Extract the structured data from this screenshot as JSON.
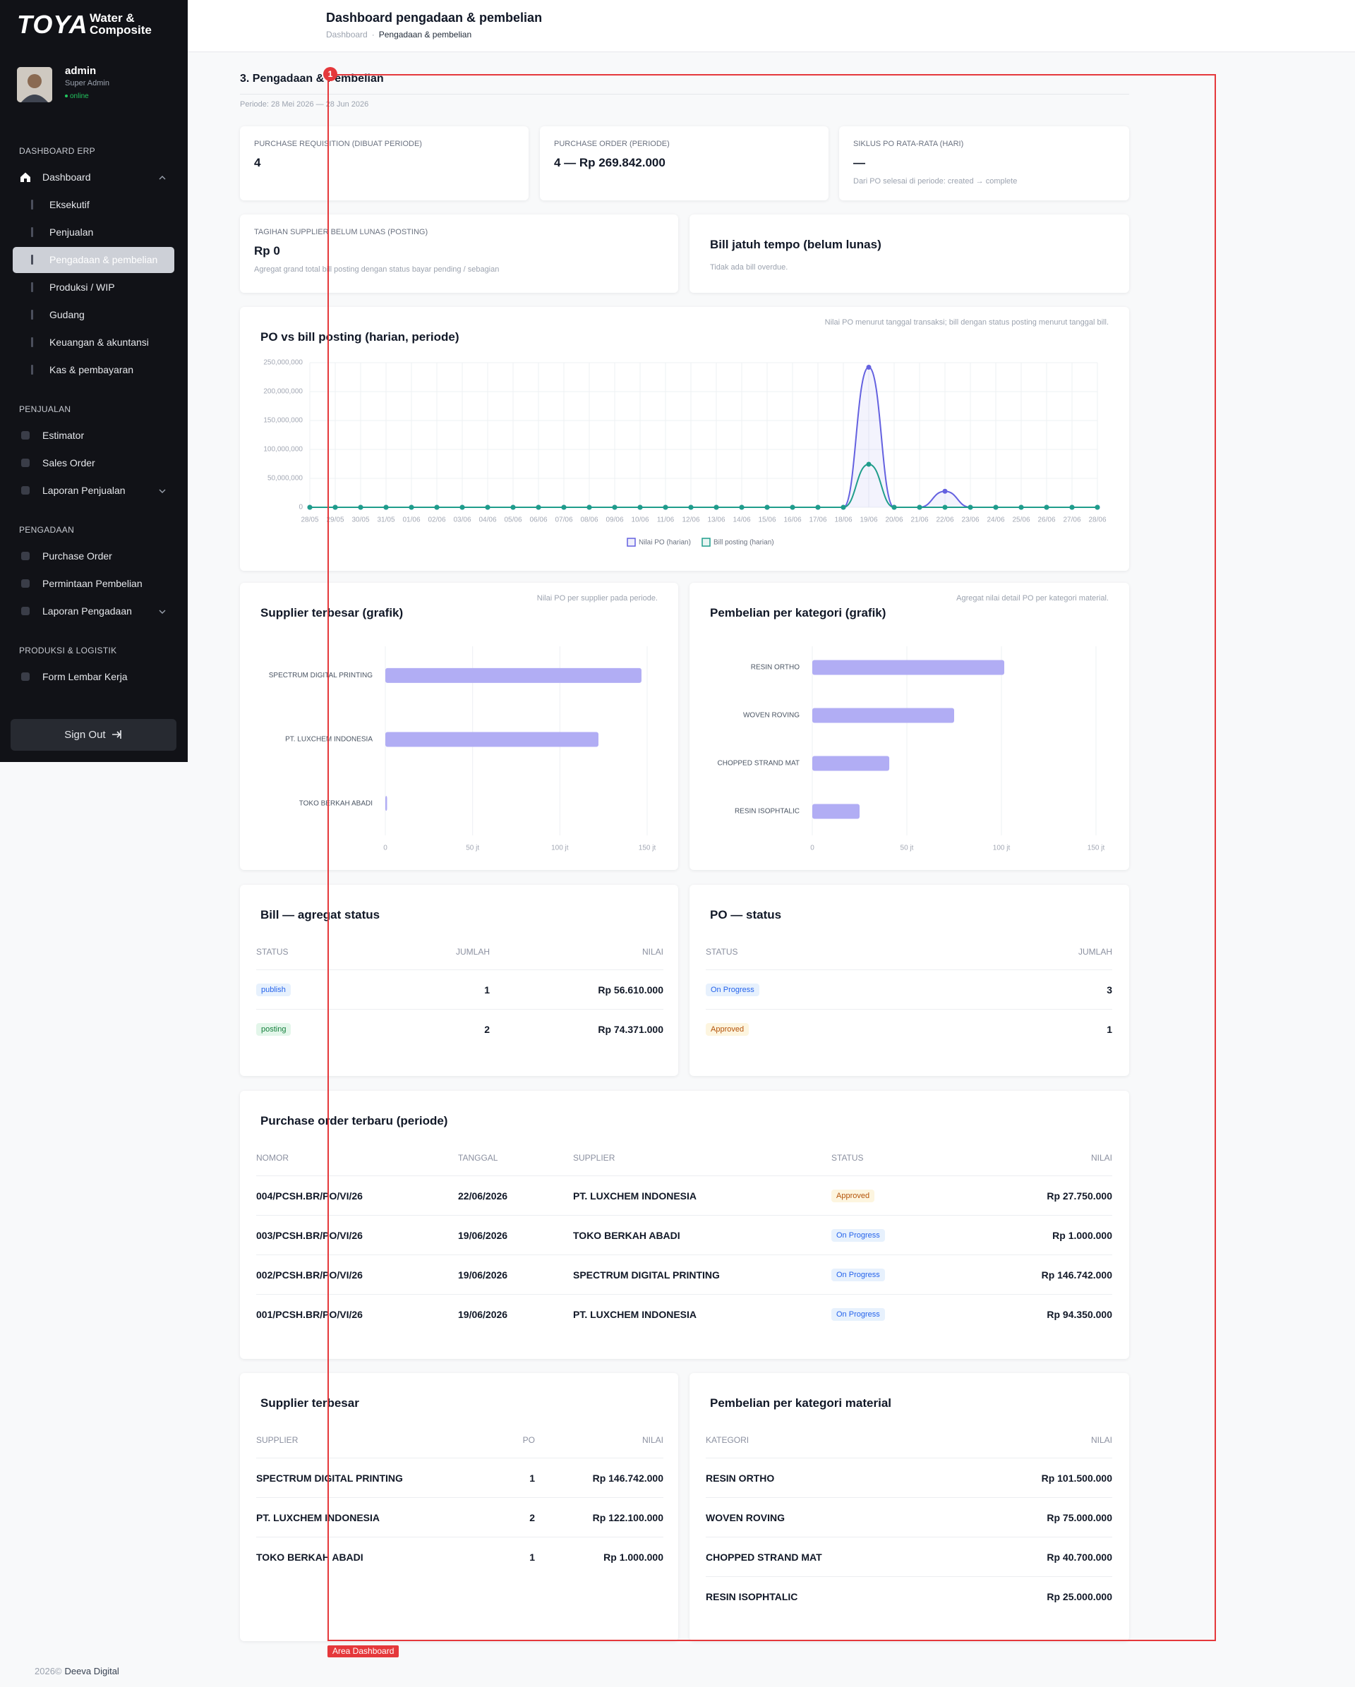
{
  "sidebar": {
    "logo": "TOYA",
    "brand": [
      "Water &",
      "Composite"
    ],
    "user": {
      "name": "admin",
      "role": "Super Admin",
      "status": "online"
    },
    "menu": [
      {
        "title": "DASHBOARD ERP",
        "items": [
          {
            "label": "Dashboard",
            "expandable": true,
            "expanded": true,
            "children": [
              {
                "label": "Eksekutif"
              },
              {
                "label": "Penjualan"
              },
              {
                "label": "Pengadaan & pembelian",
                "active": true
              },
              {
                "label": "Produksi / WIP"
              },
              {
                "label": "Gudang"
              },
              {
                "label": "Keuangan & akuntansi"
              },
              {
                "label": "Kas & pembayaran"
              }
            ]
          }
        ]
      },
      {
        "title": "PENJUALAN",
        "items": [
          {
            "label": "Estimator"
          },
          {
            "label": "Sales Order"
          },
          {
            "label": "Laporan Penjualan",
            "expandable": true
          }
        ]
      },
      {
        "title": "PENGADAAN",
        "items": [
          {
            "label": "Purchase Order"
          },
          {
            "label": "Permintaan Pembelian"
          },
          {
            "label": "Laporan Pengadaan",
            "expandable": true
          }
        ]
      },
      {
        "title": "PRODUKSI & LOGISTIK",
        "items": [
          {
            "label": "Form Lembar Kerja"
          }
        ]
      }
    ],
    "sign_out": "Sign Out"
  },
  "header": {
    "title": "Dashboard pengadaan & pembelian",
    "breadcrumb": [
      "Dashboard",
      "Pengadaan & pembelian"
    ]
  },
  "section": {
    "title": "3. Pengadaan & Pembelian",
    "period": "Periode: 28 Mei 2026 — 28 Jun 2026"
  },
  "kpis": [
    {
      "label": "PURCHASE REQUISITION (DIBUAT PERIODE)",
      "value": "4"
    },
    {
      "label": "PURCHASE ORDER (PERIODE)",
      "value": "4 — Rp 269.842.000"
    },
    {
      "label": "SIKLUS PO RATA-RATA (HARI)",
      "value": "—",
      "note": "Dari PO selesai di periode: created → complete"
    },
    {
      "label": "TAGIHAN SUPPLIER BELUM LUNAS (POSTING)",
      "value": "Rp 0",
      "note": "Agregat grand total bill posting dengan status bayar pending / sebagian"
    }
  ],
  "overdue": {
    "title": "Bill jatuh tempo (belum lunas)",
    "note": "Tidak ada bill overdue."
  },
  "chart_data": [
    {
      "type": "line",
      "title": "PO vs bill posting (harian, periode)",
      "subtitle": "Nilai PO menurut tanggal transaksi; bill dengan status posting menurut tanggal bill.",
      "categories": [
        "28/05",
        "29/05",
        "30/05",
        "31/05",
        "01/06",
        "02/06",
        "03/06",
        "04/06",
        "05/06",
        "06/06",
        "07/06",
        "08/06",
        "09/06",
        "10/06",
        "11/06",
        "12/06",
        "13/06",
        "14/06",
        "15/06",
        "16/06",
        "17/06",
        "18/06",
        "19/06",
        "20/06",
        "21/06",
        "22/06",
        "23/06",
        "24/06",
        "25/06",
        "26/06",
        "27/06",
        "28/06"
      ],
      "series": [
        {
          "name": "Nilai PO (harian)",
          "color": "#6461e0",
          "area": true,
          "values": [
            0,
            0,
            0,
            0,
            0,
            0,
            0,
            0,
            0,
            0,
            0,
            0,
            0,
            0,
            0,
            0,
            0,
            0,
            0,
            0,
            0,
            0,
            242092000,
            0,
            0,
            27750000,
            0,
            0,
            0,
            0,
            0,
            0
          ]
        },
        {
          "name": "Bill posting (harian)",
          "color": "#1f9d8b",
          "values": [
            0,
            0,
            0,
            0,
            0,
            0,
            0,
            0,
            0,
            0,
            0,
            0,
            0,
            0,
            0,
            0,
            0,
            0,
            0,
            0,
            0,
            0,
            74371000,
            0,
            0,
            0,
            0,
            0,
            0,
            0,
            0,
            0
          ]
        }
      ],
      "ylim": [
        0,
        250000000
      ],
      "yticks": [
        0,
        {
          "value": 50000000,
          "label": "50,000,000"
        },
        {
          "value": 100000000,
          "label": "100,000,000"
        },
        {
          "value": 150000000,
          "label": "150,000,000"
        },
        {
          "value": 200000000,
          "label": "200,000,000"
        },
        {
          "value": 250000000,
          "label": "250,000,000"
        }
      ],
      "grid": true,
      "legend": "bottom"
    },
    {
      "type": "bar",
      "orientation": "horizontal",
      "title": "Supplier terbesar (grafik)",
      "subtitle": "Nilai PO per supplier pada periode.",
      "categories": [
        "SPECTRUM DIGITAL PRINTING",
        "PT. LUXCHEM INDONESIA",
        "TOKO BERKAH ABADI"
      ],
      "values": [
        146742000,
        122100000,
        1000000
      ],
      "color": "#b1adf4",
      "xlim": [
        0,
        150000000
      ],
      "xticks": [
        0,
        {
          "value": 50000000,
          "label": "50 jt"
        },
        {
          "value": 100000000,
          "label": "100 jt"
        },
        {
          "value": 150000000,
          "label": "150 jt"
        }
      ],
      "grid": true
    },
    {
      "type": "bar",
      "orientation": "horizontal",
      "title": "Pembelian per kategori (grafik)",
      "subtitle": "Agregat nilai detail PO per kategori material.",
      "categories": [
        "RESIN ORTHO",
        "WOVEN ROVING",
        "CHOPPED STRAND MAT",
        "RESIN ISOPHTALIC"
      ],
      "values": [
        101500000,
        75000000,
        40700000,
        25000000
      ],
      "color": "#b1adf4",
      "xlim": [
        0,
        150000000
      ],
      "xticks": [
        0,
        {
          "value": 50000000,
          "label": "50 jt"
        },
        {
          "value": 100000000,
          "label": "100 jt"
        },
        {
          "value": 150000000,
          "label": "150 jt"
        }
      ],
      "grid": true
    }
  ],
  "bill_status": {
    "title": "Bill — agregat status",
    "columns": [
      "STATUS",
      "JUMLAH",
      "NILAI"
    ],
    "align": [
      "left",
      "right",
      "right"
    ],
    "rows": [
      [
        "publish",
        1,
        "Rp 56.610.000"
      ],
      [
        "posting",
        2,
        "Rp 74.371.000"
      ]
    ],
    "badge_column": 0,
    "badge_tones": [
      "blue",
      "green"
    ]
  },
  "po_status": {
    "title": "PO — status",
    "columns": [
      "STATUS",
      "JUMLAH"
    ],
    "align": [
      "left",
      "right"
    ],
    "rows": [
      [
        "On Progress",
        3
      ],
      [
        "Approved",
        1
      ]
    ],
    "badge_column": 0,
    "badge_tones": [
      "blue",
      "amber"
    ]
  },
  "recent_po": {
    "title": "Purchase order terbaru (periode)",
    "columns": [
      "NOMOR",
      "TANGGAL",
      "SUPPLIER",
      "STATUS",
      "NILAI"
    ],
    "align": [
      "left",
      "left",
      "left",
      "left",
      "right"
    ],
    "rows": [
      [
        "004/PCSH.BR/PO/VI/26",
        "22/06/2026",
        "PT. LUXCHEM INDONESIA",
        "Approved",
        "Rp 27.750.000"
      ],
      [
        "003/PCSH.BR/PO/VI/26",
        "19/06/2026",
        "TOKO BERKAH ABADI",
        "On Progress",
        "Rp 1.000.000"
      ],
      [
        "002/PCSH.BR/PO/VI/26",
        "19/06/2026",
        "SPECTRUM DIGITAL PRINTING",
        "On Progress",
        "Rp 146.742.000"
      ],
      [
        "001/PCSH.BR/PO/VI/26",
        "19/06/2026",
        "PT. LUXCHEM INDONESIA",
        "On Progress",
        "Rp 94.350.000"
      ]
    ],
    "badge_column": 3,
    "badge_tones": [
      "amber",
      "blue",
      "blue",
      "blue"
    ]
  },
  "top_suppliers": {
    "title": "Supplier terbesar",
    "columns": [
      "SUPPLIER",
      "PO",
      "NILAI"
    ],
    "align": [
      "left",
      "right",
      "right"
    ],
    "rows": [
      [
        "SPECTRUM DIGITAL PRINTING",
        1,
        "Rp 146.742.000"
      ],
      [
        "PT. LUXCHEM INDONESIA",
        2,
        "Rp 122.100.000"
      ],
      [
        "TOKO BERKAH ABADI",
        1,
        "Rp 1.000.000"
      ]
    ]
  },
  "category_purchases": {
    "title": "Pembelian per kategori material",
    "columns": [
      "KATEGORI",
      "NILAI"
    ],
    "align": [
      "left",
      "right"
    ],
    "rows": [
      [
        "RESIN ORTHO",
        "Rp 101.500.000"
      ],
      [
        "WOVEN ROVING",
        "Rp 75.000.000"
      ],
      [
        "CHOPPED STRAND MAT",
        "Rp 40.700.000"
      ],
      [
        "RESIN ISOPHTALIC",
        "Rp 25.000.000"
      ]
    ]
  },
  "annotation": {
    "badge": "1",
    "label": "Area Dashboard"
  },
  "footer": {
    "year": "2026©",
    "company": "Deeva Digital"
  }
}
